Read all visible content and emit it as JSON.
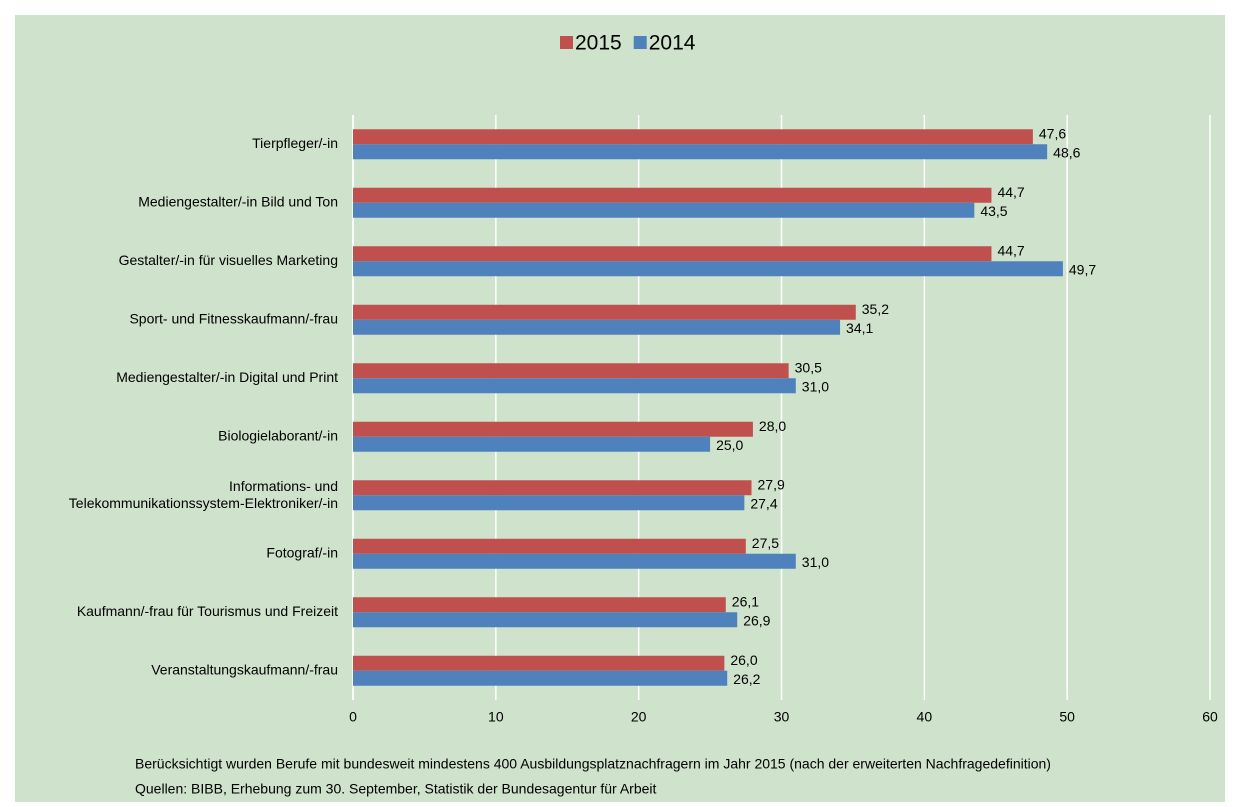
{
  "chart_data": {
    "type": "hbar",
    "categories": [
      "Tierpfleger/-in",
      "Mediengestalter/-in Bild und Ton",
      "Gestalter/-in für visuelles Marketing",
      "Sport- und Fitnesskaufmann/-frau",
      "Mediengestalter/-in Digital und Print",
      "Biologielaborant/-in",
      "Informations- und\nTelekommunikationssystem-Elektroniker/-in",
      "Fotograf/-in",
      "Kaufmann/-frau für Tourismus und Freizeit",
      "Veranstaltungskaufmann/-frau"
    ],
    "series": [
      {
        "name": "2015",
        "color": "#c0504d",
        "values": [
          47.6,
          44.7,
          44.7,
          35.2,
          30.5,
          28.0,
          27.9,
          27.5,
          26.1,
          26.0
        ],
        "value_labels": [
          "47,6",
          "44,7",
          "44,7",
          "35,2",
          "30,5",
          "28,0",
          "27,9",
          "27,5",
          "26,1",
          "26,0"
        ]
      },
      {
        "name": "2014",
        "color": "#4f81bd",
        "values": [
          48.6,
          43.5,
          49.7,
          34.1,
          31.0,
          25.0,
          27.4,
          31.0,
          26.9,
          26.2
        ],
        "value_labels": [
          "48,6",
          "43,5",
          "49,7",
          "34,1",
          "31,0",
          "25,0",
          "27,4",
          "31,0",
          "26,9",
          "26,2"
        ]
      }
    ],
    "xlim": [
      0,
      60
    ],
    "xticks": [
      0,
      10,
      20,
      30,
      40,
      50,
      60
    ],
    "grid": true,
    "legend": "top",
    "notes": [
      "Berücksichtigt wurden Berufe mit bundesweit mindestens 400 Ausbildungsplatznachfragern im Jahr 2015 (nach der erweiterten Nachfragedefinition)",
      "Quellen: BIBB, Erhebung zum 30. September, Statistik der Bundesagentur für Arbeit"
    ]
  }
}
